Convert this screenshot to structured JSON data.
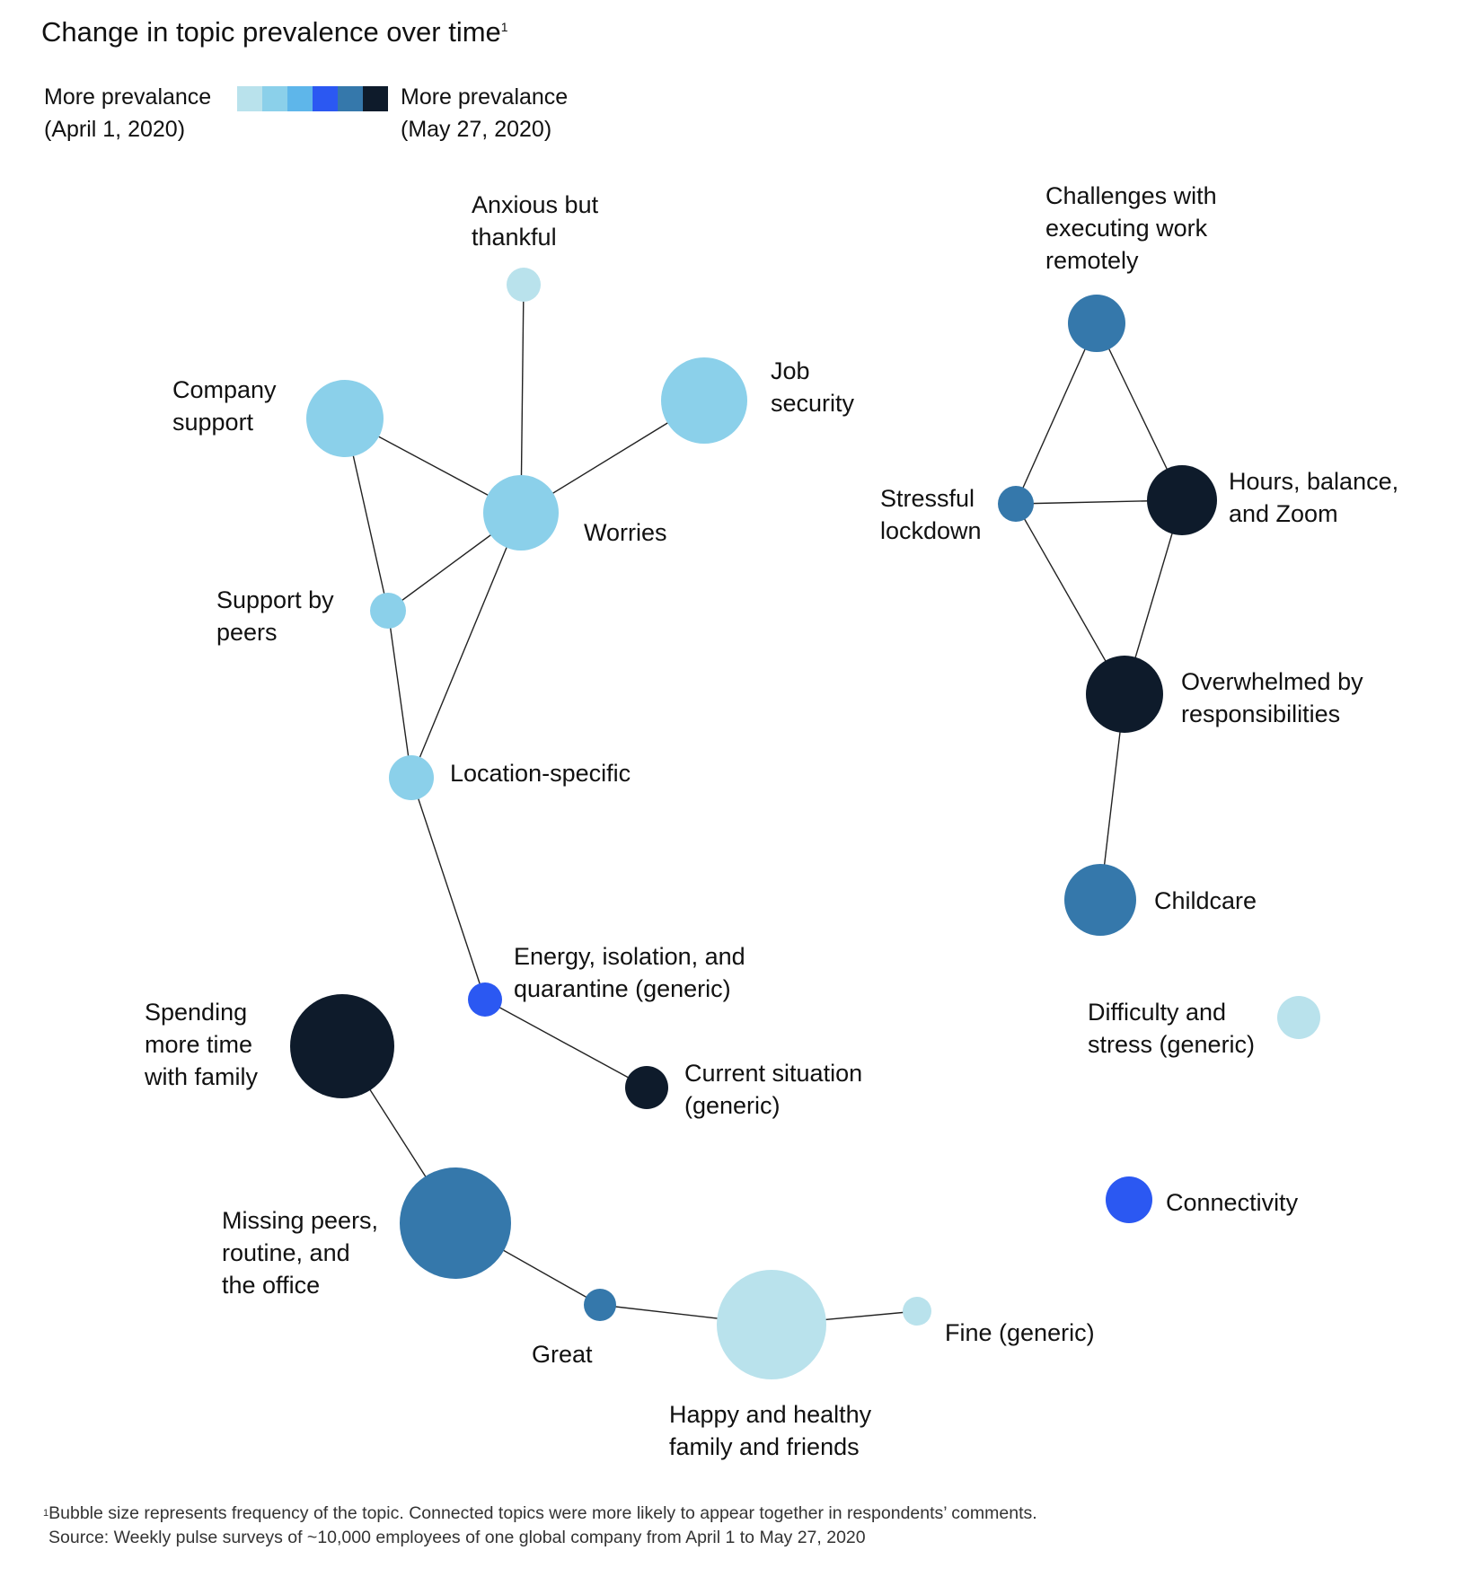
{
  "title": "Change in topic prevalence over time",
  "title_footnote_mark": "1",
  "legend": {
    "left_line1": "More prevalance",
    "left_line2": "(April 1, 2020)",
    "right_line1": "More prevalance",
    "right_line2": "(May 27, 2020)",
    "scale_colors": [
      "#b9e2ec",
      "#8bd0ea",
      "#5eb6ea",
      "#2b58f2",
      "#3578ab",
      "#0e1b2b"
    ]
  },
  "nodes": [
    {
      "id": "anxious",
      "label_lines": [
        "Anxious but",
        "thankful"
      ],
      "color": "#b9e2ec"
    },
    {
      "id": "job",
      "label_lines": [
        "Job",
        "security"
      ],
      "color": "#8bd0ea"
    },
    {
      "id": "company",
      "label_lines": [
        "Company",
        "support"
      ],
      "color": "#8bd0ea"
    },
    {
      "id": "worries",
      "label_lines": [
        "Worries"
      ],
      "color": "#8bd0ea"
    },
    {
      "id": "peers",
      "label_lines": [
        "Support by",
        "peers"
      ],
      "color": "#8bd0ea"
    },
    {
      "id": "location",
      "label_lines": [
        "Location-specific"
      ],
      "color": "#8bd0ea"
    },
    {
      "id": "energy",
      "label_lines": [
        "Energy, isolation, and",
        "quarantine (generic)"
      ],
      "color": "#2b58f2"
    },
    {
      "id": "current",
      "label_lines": [
        "Current situation",
        "(generic)"
      ],
      "color": "#0e1b2b"
    },
    {
      "id": "spending",
      "label_lines": [
        "Spending",
        "more time",
        "with family"
      ],
      "color": "#0e1b2b"
    },
    {
      "id": "missing",
      "label_lines": [
        "Missing peers,",
        "routine, and",
        "the office"
      ],
      "color": "#3578ab"
    },
    {
      "id": "great",
      "label_lines": [
        "Great"
      ],
      "color": "#3578ab"
    },
    {
      "id": "happy",
      "label_lines": [
        "Happy and healthy",
        "family and friends"
      ],
      "color": "#b9e2ec"
    },
    {
      "id": "fine",
      "label_lines": [
        "Fine (generic)"
      ],
      "color": "#b9e2ec"
    },
    {
      "id": "challenges",
      "label_lines": [
        "Challenges with",
        "executing work",
        "remotely"
      ],
      "color": "#3578ab"
    },
    {
      "id": "stressful",
      "label_lines": [
        "Stressful",
        "lockdown"
      ],
      "color": "#3578ab"
    },
    {
      "id": "hours",
      "label_lines": [
        "Hours, balance,",
        "and Zoom"
      ],
      "color": "#0e1b2b"
    },
    {
      "id": "overwhelmed",
      "label_lines": [
        "Overwhelmed by",
        "responsibilities"
      ],
      "color": "#0e1b2b"
    },
    {
      "id": "childcare",
      "label_lines": [
        "Childcare"
      ],
      "color": "#3578ab"
    },
    {
      "id": "difficulty",
      "label_lines": [
        "Difficulty and",
        "stress (generic)"
      ],
      "color": "#b9e2ec"
    },
    {
      "id": "connectivity",
      "label_lines": [
        "Connectivity"
      ],
      "color": "#2b58f2"
    }
  ],
  "edges": [
    [
      "anxious",
      "worries"
    ],
    [
      "job",
      "worries"
    ],
    [
      "company",
      "worries"
    ],
    [
      "company",
      "peers"
    ],
    [
      "peers",
      "worries"
    ],
    [
      "peers",
      "location"
    ],
    [
      "worries",
      "location"
    ],
    [
      "location",
      "energy"
    ],
    [
      "energy",
      "current"
    ],
    [
      "spending",
      "missing"
    ],
    [
      "missing",
      "great"
    ],
    [
      "great",
      "happy"
    ],
    [
      "happy",
      "fine"
    ],
    [
      "challenges",
      "stressful"
    ],
    [
      "challenges",
      "hours"
    ],
    [
      "stressful",
      "hours"
    ],
    [
      "stressful",
      "overwhelmed"
    ],
    [
      "hours",
      "overwhelmed"
    ],
    [
      "overwhelmed",
      "childcare"
    ]
  ],
  "footer": {
    "note_mark": "1",
    "note": "Bubble size represents frequency of the topic. Connected topics were more likely to appear together in respondents’ comments.",
    "source": "Source: Weekly pulse surveys of ~10,000 employees of one global company from April 1 to May 27, 2020"
  }
}
